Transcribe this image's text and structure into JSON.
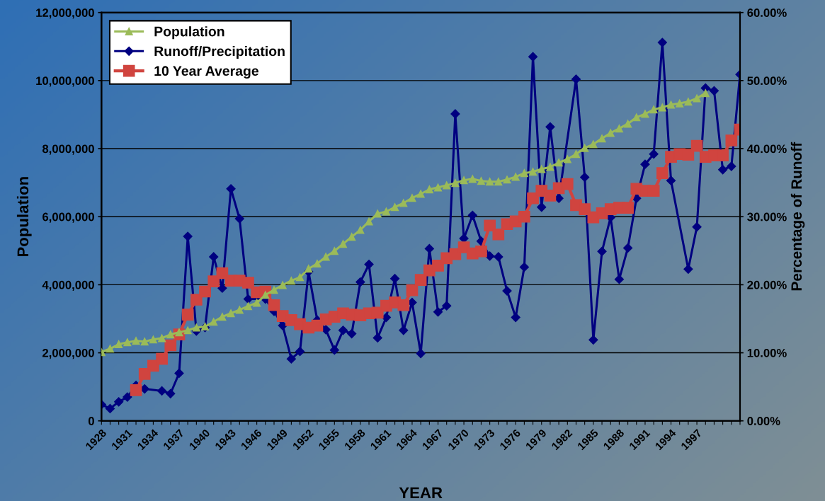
{
  "chart_data": {
    "type": "line",
    "xlabel": "YEAR",
    "ylabel": "Population",
    "y2label": "Percentage of Runoff",
    "categories": [
      "1928",
      null,
      null,
      "1931",
      null,
      null,
      "1934",
      null,
      null,
      "1937",
      null,
      null,
      "1940",
      null,
      null,
      "1943",
      null,
      null,
      "1946",
      null,
      null,
      "1949",
      null,
      null,
      "1952",
      null,
      null,
      "1955",
      null,
      null,
      "1958",
      null,
      null,
      "1961",
      null,
      null,
      "1964",
      null,
      null,
      "1967",
      null,
      null,
      "1970",
      null,
      null,
      "1973",
      null,
      null,
      "1976",
      null,
      null,
      "1979",
      null,
      null,
      "1982",
      null,
      null,
      "1985",
      null,
      null,
      "1988",
      null,
      null,
      "1991",
      null,
      null,
      "1994",
      null,
      null,
      "1997",
      null,
      null,
      null,
      null,
      null
    ],
    "series": [
      {
        "name": "Population",
        "color": "#9bbb59",
        "marker": "triangle",
        "values": [
          2020000,
          2120000,
          2250000,
          2310000,
          2350000,
          2330000,
          2390000,
          2430000,
          2540000,
          2600000,
          2660000,
          2740000,
          2770000,
          2910000,
          3060000,
          3160000,
          3260000,
          3370000,
          3470000,
          3700000,
          3850000,
          3990000,
          4120000,
          4220000,
          4470000,
          4620000,
          4820000,
          4990000,
          5200000,
          5410000,
          5610000,
          5860000,
          6090000,
          6150000,
          6280000,
          6400000,
          6550000,
          6670000,
          6800000,
          6860000,
          6920000,
          6990000,
          7070000,
          7110000,
          7050000,
          7030000,
          7030000,
          7090000,
          7170000,
          7280000,
          7320000,
          7400000,
          7460000,
          7590000,
          7690000,
          7840000,
          8020000,
          8130000,
          8300000,
          8460000,
          8590000,
          8730000,
          8920000,
          9020000,
          9150000,
          9210000,
          9290000,
          9330000,
          9380000,
          9480000,
          9630000,
          null,
          null,
          null,
          null
        ]
      },
      {
        "name": "Runoff/Precipitation",
        "color": "#000080",
        "marker": "diamond",
        "axis": "y2",
        "values": [
          2.4,
          1.8,
          2.8,
          3.5,
          5.2,
          4.7,
          null,
          4.4,
          4.0,
          7.0,
          27.1,
          13.2,
          13.7,
          24.1,
          19.5,
          34.1,
          29.7,
          17.9,
          null,
          17.9,
          16.1,
          14.0,
          9.1,
          10.2,
          21.9,
          14.8,
          13.4,
          10.4,
          13.3,
          12.8,
          20.4,
          23.0,
          12.2,
          15.2,
          20.9,
          13.3,
          17.4,
          9.9,
          25.3,
          16.0,
          16.9,
          45.1,
          26.8,
          30.2,
          26.4,
          24.2,
          24.1,
          19.1,
          15.2,
          22.6,
          53.5,
          31.4,
          43.2,
          32.7,
          null,
          50.2,
          35.8,
          11.9,
          24.9,
          29.9,
          20.8,
          25.4,
          32.7,
          37.7,
          39.2,
          55.6,
          35.3,
          null,
          22.3,
          28.5,
          48.9,
          48.5,
          36.9,
          37.4,
          50.9
        ]
      },
      {
        "name": "10 Year Average",
        "color": "#d0443f",
        "marker": "square",
        "axis": "y2",
        "values": [
          null,
          null,
          null,
          null,
          4.5,
          6.9,
          8.1,
          9.1,
          11.1,
          12.7,
          15.6,
          17.8,
          19.0,
          20.5,
          21.7,
          20.6,
          20.6,
          20.3,
          18.9,
          19.0,
          17.0,
          15.4,
          14.8,
          14.2,
          13.7,
          14.0,
          14.9,
          15.3,
          15.8,
          15.6,
          15.5,
          15.8,
          15.9,
          16.9,
          17.4,
          17.0,
          19.2,
          20.7,
          22.1,
          22.8,
          23.9,
          24.5,
          25.5,
          24.6,
          24.9,
          28.7,
          27.4,
          28.9,
          29.3,
          30.0,
          32.7,
          33.8,
          33.1,
          34.2,
          34.8,
          31.7,
          31.1,
          29.9,
          30.5,
          31.1,
          31.3,
          31.3,
          34.1,
          33.8,
          33.8,
          36.4,
          38.8,
          39.2,
          39.1,
          40.4,
          38.8,
          39.0,
          39.0,
          41.2,
          42.8
        ]
      }
    ],
    "ylim": [
      0,
      12000000
    ],
    "yticks": [
      {
        "value": 0,
        "label": "0"
      },
      {
        "value": 2000000,
        "label": "2,000,000"
      },
      {
        "value": 4000000,
        "label": "4,000,000"
      },
      {
        "value": 6000000,
        "label": "6,000,000"
      },
      {
        "value": 8000000,
        "label": "8,000,000"
      },
      {
        "value": 10000000,
        "label": "10,000,000"
      },
      {
        "value": 12000000,
        "label": "12,000,000"
      }
    ],
    "y2lim": [
      0,
      60
    ],
    "y2ticks": [
      {
        "value": 0,
        "label": "0.00%"
      },
      {
        "value": 10,
        "label": "10.00%"
      },
      {
        "value": 20,
        "label": "20.00%"
      },
      {
        "value": 30,
        "label": "30.00%"
      },
      {
        "value": 40,
        "label": "40.00%"
      },
      {
        "value": 50,
        "label": "50.00%"
      },
      {
        "value": 60,
        "label": "60.00%"
      }
    ],
    "grid": "y",
    "legend": "top left",
    "line_style": "solid"
  }
}
